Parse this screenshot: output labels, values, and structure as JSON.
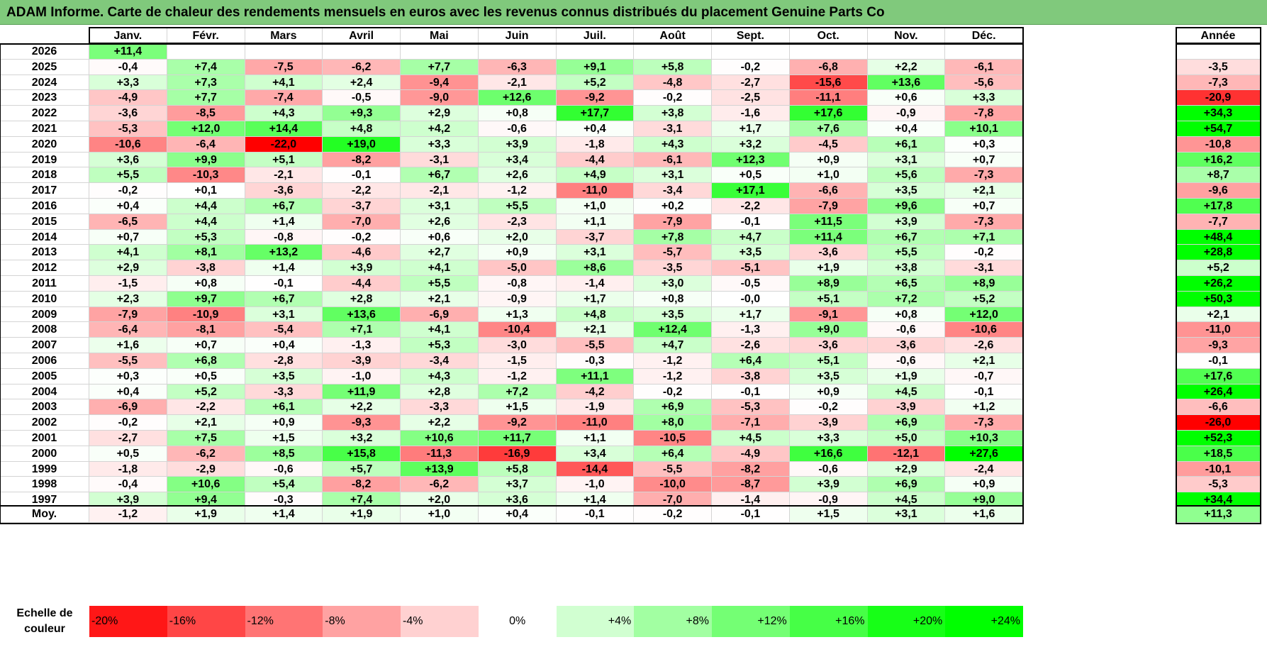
{
  "title": "ADAM Informe. Carte de chaleur des rendements mensuels en euros avec les revenus connus distribués du placement Genuine Parts Co",
  "chart_data": {
    "type": "heatmap",
    "title": "ADAM Informe. Carte de chaleur des rendements mensuels en euros avec les revenus connus distribués du placement Genuine Parts Co",
    "columns": [
      "Janv.",
      "Févr.",
      "Mars",
      "Avril",
      "Mai",
      "Juin",
      "Juil.",
      "Août",
      "Sept.",
      "Oct.",
      "Nov.",
      "Déc."
    ],
    "year_column": "Année",
    "rows": [
      {
        "year": "2026",
        "months": [
          "+11,4",
          "",
          "",
          "",
          "",
          "",
          "",
          "",
          "",
          "",
          "",
          ""
        ],
        "annual": ""
      },
      {
        "year": "2025",
        "months": [
          "-0,4",
          "+7,4",
          "-7,5",
          "-6,2",
          "+7,7",
          "-6,3",
          "+9,1",
          "+5,8",
          "-0,2",
          "-6,8",
          "+2,2",
          "-6,1"
        ],
        "annual": "-3,5"
      },
      {
        "year": "2024",
        "months": [
          "+3,3",
          "+7,3",
          "+4,1",
          "+2,4",
          "-9,4",
          "-2,1",
          "+5,2",
          "-4,8",
          "-2,7",
          "-15,6",
          "+13,6",
          "-5,6"
        ],
        "annual": "-7,3"
      },
      {
        "year": "2023",
        "months": [
          "-4,9",
          "+7,7",
          "-7,4",
          "-0,5",
          "-9,0",
          "+12,6",
          "-9,2",
          "-0,2",
          "-2,5",
          "-11,1",
          "+0,6",
          "+3,3"
        ],
        "annual": "-20,9"
      },
      {
        "year": "2022",
        "months": [
          "-3,6",
          "-8,5",
          "+4,3",
          "+9,3",
          "+2,9",
          "+0,8",
          "+17,7",
          "+3,8",
          "-1,6",
          "+17,6",
          "-0,9",
          "-7,8"
        ],
        "annual": "+34,3"
      },
      {
        "year": "2021",
        "months": [
          "-5,3",
          "+12,0",
          "+14,4",
          "+4,8",
          "+4,2",
          "-0,6",
          "+0,4",
          "-3,1",
          "+1,7",
          "+7,6",
          "+0,4",
          "+10,1"
        ],
        "annual": "+54,7"
      },
      {
        "year": "2020",
        "months": [
          "-10,6",
          "-6,4",
          "-22,0",
          "+19,0",
          "+3,3",
          "+3,9",
          "-1,8",
          "+4,3",
          "+3,2",
          "-4,5",
          "+6,1",
          "+0,3"
        ],
        "annual": "-10,8"
      },
      {
        "year": "2019",
        "months": [
          "+3,6",
          "+9,9",
          "+5,1",
          "-8,2",
          "-3,1",
          "+3,4",
          "-4,4",
          "-6,1",
          "+12,3",
          "+0,9",
          "+3,1",
          "+0,7"
        ],
        "annual": "+16,2"
      },
      {
        "year": "2018",
        "months": [
          "+5,5",
          "-10,3",
          "-2,1",
          "-0,1",
          "+6,7",
          "+2,6",
          "+4,9",
          "+3,1",
          "+0,5",
          "+1,0",
          "+5,6",
          "-7,3"
        ],
        "annual": "+8,7"
      },
      {
        "year": "2017",
        "months": [
          "-0,2",
          "+0,1",
          "-3,6",
          "-2,2",
          "-2,1",
          "-1,2",
          "-11,0",
          "-3,4",
          "+17,1",
          "-6,6",
          "+3,5",
          "+2,1"
        ],
        "annual": "-9,6"
      },
      {
        "year": "2016",
        "months": [
          "+0,4",
          "+4,4",
          "+6,7",
          "-3,7",
          "+3,1",
          "+5,5",
          "+1,0",
          "+0,2",
          "-2,2",
          "-7,9",
          "+9,6",
          "+0,7"
        ],
        "annual": "+17,8"
      },
      {
        "year": "2015",
        "months": [
          "-6,5",
          "+4,4",
          "+1,4",
          "-7,0",
          "+2,6",
          "-2,3",
          "+1,1",
          "-7,9",
          "-0,1",
          "+11,5",
          "+3,9",
          "-7,3"
        ],
        "annual": "-7,7"
      },
      {
        "year": "2014",
        "months": [
          "+0,7",
          "+5,3",
          "-0,8",
          "-0,2",
          "+0,6",
          "+2,0",
          "-3,7",
          "+7,8",
          "+4,7",
          "+11,4",
          "+6,7",
          "+7,1"
        ],
        "annual": "+48,4"
      },
      {
        "year": "2013",
        "months": [
          "+4,1",
          "+8,1",
          "+13,2",
          "-4,6",
          "+2,7",
          "+0,9",
          "+3,1",
          "-5,7",
          "+3,5",
          "-3,6",
          "+5,5",
          "-0,2"
        ],
        "annual": "+28,8"
      },
      {
        "year": "2012",
        "months": [
          "+2,9",
          "-3,8",
          "+1,4",
          "+3,9",
          "+4,1",
          "-5,0",
          "+8,6",
          "-3,5",
          "-5,1",
          "+1,9",
          "+3,8",
          "-3,1"
        ],
        "annual": "+5,2"
      },
      {
        "year": "2011",
        "months": [
          "-1,5",
          "+0,8",
          "-0,1",
          "-4,4",
          "+5,5",
          "-0,8",
          "-1,4",
          "+3,0",
          "-0,5",
          "+8,9",
          "+6,5",
          "+8,9"
        ],
        "annual": "+26,2"
      },
      {
        "year": "2010",
        "months": [
          "+2,3",
          "+9,7",
          "+6,7",
          "+2,8",
          "+2,1",
          "-0,9",
          "+1,7",
          "+0,8",
          "-0,0",
          "+5,1",
          "+7,2",
          "+5,2"
        ],
        "annual": "+50,3"
      },
      {
        "year": "2009",
        "months": [
          "-7,9",
          "-10,9",
          "+3,1",
          "+13,6",
          "-6,9",
          "+1,3",
          "+4,8",
          "+3,5",
          "+1,7",
          "-9,1",
          "+0,8",
          "+12,0"
        ],
        "annual": "+2,1"
      },
      {
        "year": "2008",
        "months": [
          "-6,4",
          "-8,1",
          "-5,4",
          "+7,1",
          "+4,1",
          "-10,4",
          "+2,1",
          "+12,4",
          "-1,3",
          "+9,0",
          "-0,6",
          "-10,6"
        ],
        "annual": "-11,0"
      },
      {
        "year": "2007",
        "months": [
          "+1,6",
          "+0,7",
          "+0,4",
          "-1,3",
          "+5,3",
          "-3,0",
          "-5,5",
          "+4,7",
          "-2,6",
          "-3,6",
          "-3,6",
          "-2,6"
        ],
        "annual": "-9,3"
      },
      {
        "year": "2006",
        "months": [
          "-5,5",
          "+6,8",
          "-2,8",
          "-3,9",
          "-3,4",
          "-1,5",
          "-0,3",
          "-1,2",
          "+6,4",
          "+5,1",
          "-0,6",
          "+2,1"
        ],
        "annual": "-0,1"
      },
      {
        "year": "2005",
        "months": [
          "+0,3",
          "+0,5",
          "+3,5",
          "-1,0",
          "+4,3",
          "-1,2",
          "+11,1",
          "-1,2",
          "-3,8",
          "+3,5",
          "+1,9",
          "-0,7"
        ],
        "annual": "+17,6"
      },
      {
        "year": "2004",
        "months": [
          "+0,4",
          "+5,2",
          "-3,3",
          "+11,9",
          "+2,8",
          "+7,2",
          "-4,2",
          "-0,2",
          "-0,1",
          "+0,9",
          "+4,5",
          "-0,1"
        ],
        "annual": "+26,4"
      },
      {
        "year": "2003",
        "months": [
          "-6,9",
          "-2,2",
          "+6,1",
          "+2,2",
          "-3,3",
          "+1,5",
          "-1,9",
          "+6,9",
          "-5,3",
          "-0,2",
          "-3,9",
          "+1,2"
        ],
        "annual": "-6,6"
      },
      {
        "year": "2002",
        "months": [
          "-0,2",
          "+2,1",
          "+0,9",
          "-9,3",
          "+2,2",
          "-9,2",
          "-11,0",
          "+8,0",
          "-7,1",
          "-3,9",
          "+6,9",
          "-7,3"
        ],
        "annual": "-26,0"
      },
      {
        "year": "2001",
        "months": [
          "-2,7",
          "+7,5",
          "+1,5",
          "+3,2",
          "+10,6",
          "+11,7",
          "+1,1",
          "-10,5",
          "+4,5",
          "+3,3",
          "+5,0",
          "+10,3"
        ],
        "annual": "+52,3"
      },
      {
        "year": "2000",
        "months": [
          "+0,5",
          "-6,2",
          "+8,5",
          "+15,8",
          "-11,3",
          "-16,9",
          "+3,4",
          "+6,4",
          "-4,9",
          "+16,6",
          "-12,1",
          "+27,6"
        ],
        "annual": "+18,5"
      },
      {
        "year": "1999",
        "months": [
          "-1,8",
          "-2,9",
          "-0,6",
          "+5,7",
          "+13,9",
          "+5,8",
          "-14,4",
          "-5,5",
          "-8,2",
          "-0,6",
          "+2,9",
          "-2,4"
        ],
        "annual": "-10,1"
      },
      {
        "year": "1998",
        "months": [
          "-0,4",
          "+10,6",
          "+5,4",
          "-8,2",
          "-6,2",
          "+3,7",
          "-1,0",
          "-10,0",
          "-8,7",
          "+3,9",
          "+6,9",
          "+0,9"
        ],
        "annual": "-5,3"
      },
      {
        "year": "1997",
        "months": [
          "+3,9",
          "+9,4",
          "-0,3",
          "+7,4",
          "+2,0",
          "+3,6",
          "+1,4",
          "-7,0",
          "-1,4",
          "-0,9",
          "+4,5",
          "+9,0"
        ],
        "annual": "+34,4"
      }
    ],
    "average": {
      "label": "Moy.",
      "months": [
        "-1,2",
        "+1,9",
        "+1,4",
        "+1,9",
        "+1,0",
        "+0,4",
        "-0,1",
        "-0,2",
        "-0,1",
        "+1,5",
        "+3,1",
        "+1,6"
      ],
      "annual": "+11,3"
    },
    "color_scale": {
      "label": "Echelle de couleur",
      "stops": [
        "-20%",
        "-16%",
        "-12%",
        "-8%",
        "-4%",
        "0%",
        "+4%",
        "+8%",
        "+12%",
        "+16%",
        "+20%",
        "+24%"
      ],
      "values": [
        -20,
        -16,
        -12,
        -8,
        -4,
        0,
        4,
        8,
        12,
        16,
        20,
        24
      ]
    },
    "colors": {
      "negative": "#ff0000",
      "neutral": "#ffffff",
      "positive": "#00ff00",
      "title_bg": "#80c97c"
    }
  }
}
